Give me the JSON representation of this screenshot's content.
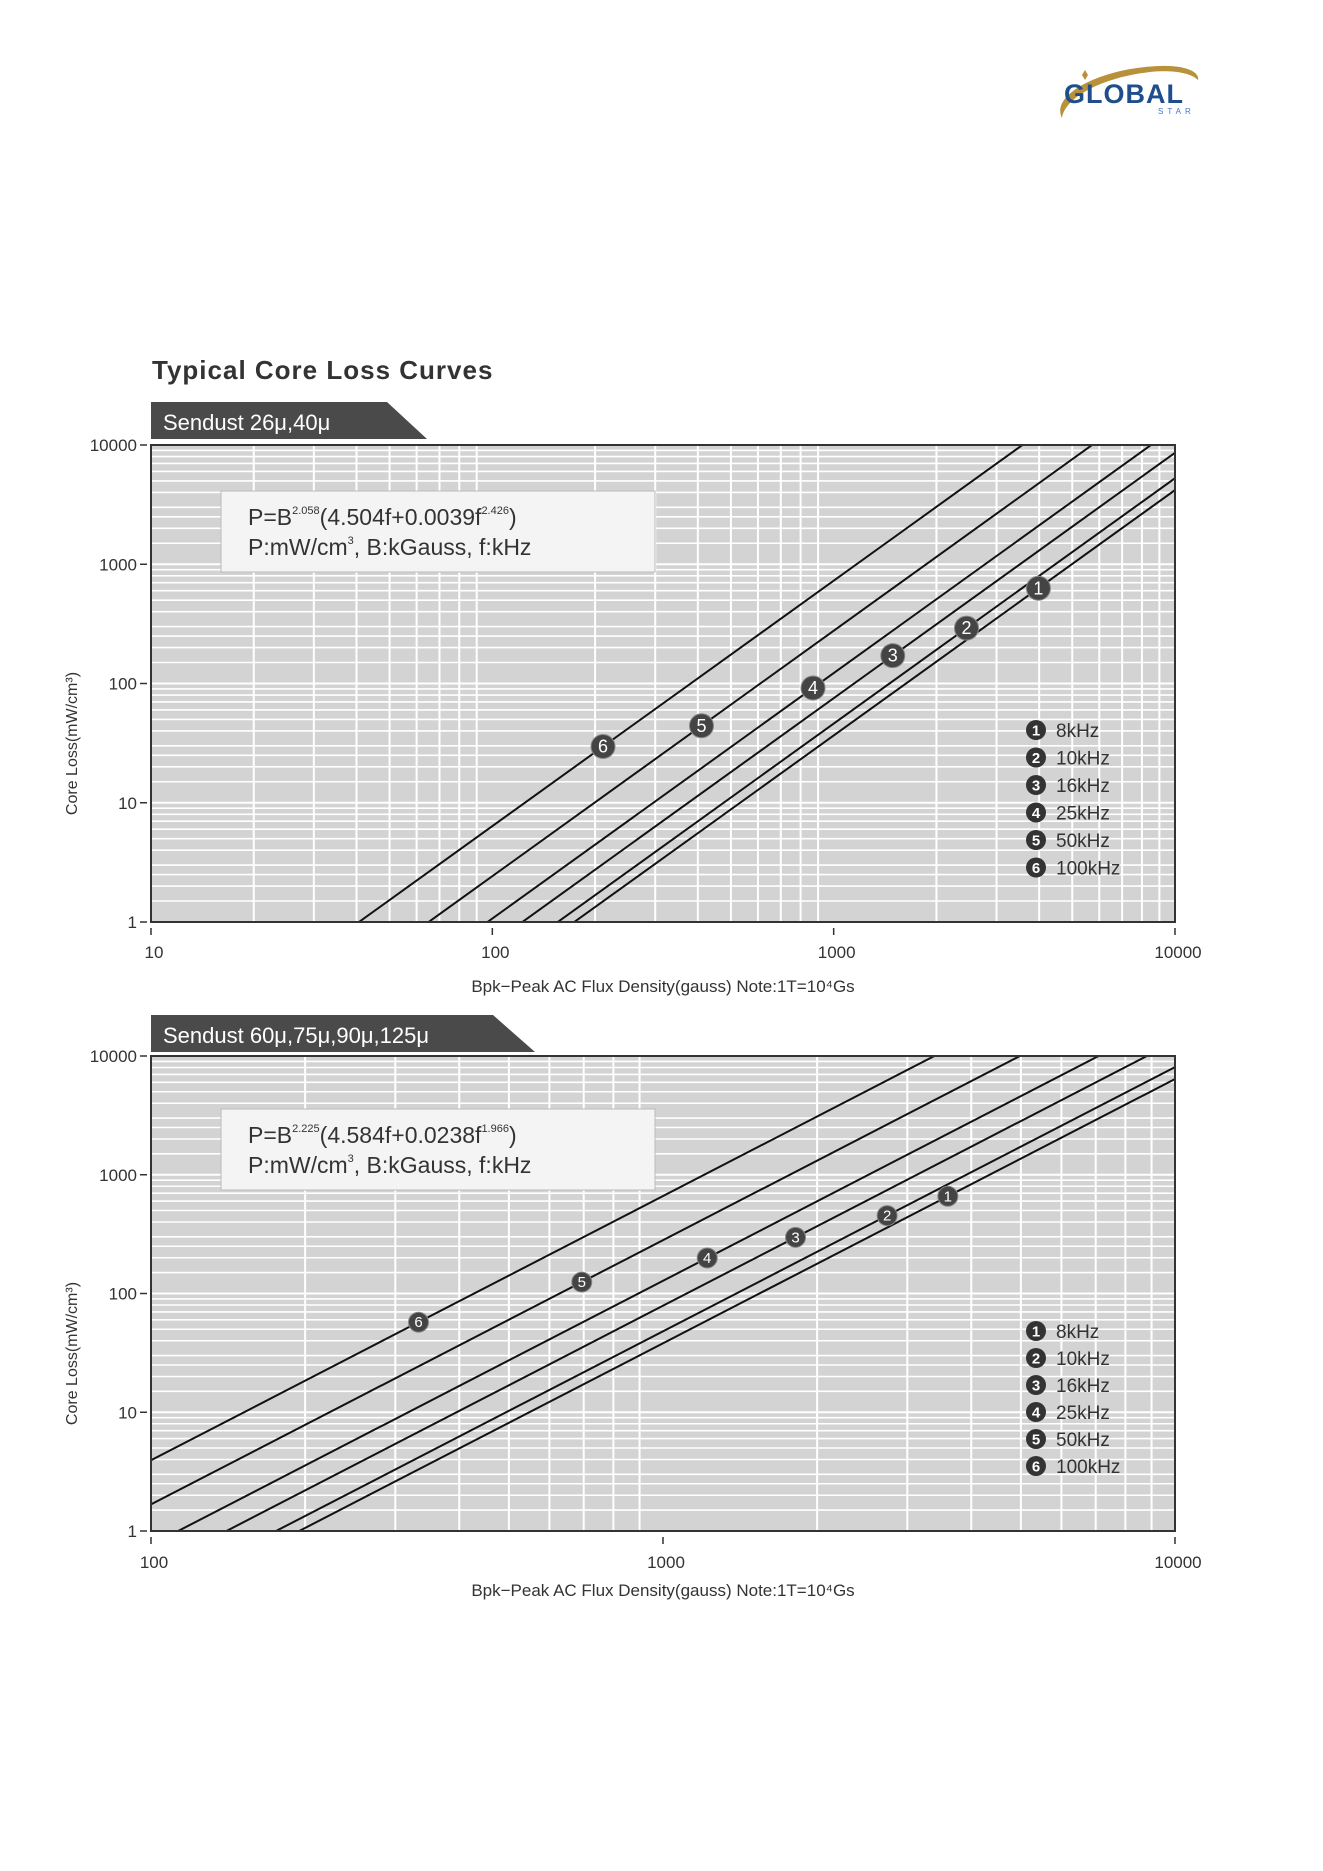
{
  "logo": {
    "name": "GLOBAL",
    "sub": "STAR",
    "colors": {
      "text": "#1f4e8c",
      "swoosh": "#b8923a"
    }
  },
  "page_title": "Typical Core Loss Curves",
  "chart_data": [
    {
      "type": "line",
      "title": "Sendust 26μ,40μ",
      "formula": {
        "line1": [
          "P=B",
          "2.058",
          "(4.504f+0.0039f",
          "2.426",
          ")"
        ],
        "line2": [
          "P:mW/cm",
          "3",
          ",  B:kGauss,  f:kHz"
        ]
      },
      "model": {
        "b_exp": 2.058,
        "c1": 4.504,
        "c2": 0.0039,
        "f_exp": 2.426,
        "x_unit_per_kGauss": 1000
      },
      "xlabel": "Bpk−Peak AC Flux Density(gauss) Note:1T=10⁴Gs",
      "ylabel": "Core Loss(mW/cm³)",
      "xscale": "log",
      "yscale": "log",
      "xlim": [
        10,
        10000
      ],
      "ylim": [
        1,
        10000
      ],
      "xticks": [
        {
          "v": 10,
          "label": "10"
        },
        {
          "v": 100,
          "label": "100"
        },
        {
          "v": 1000,
          "label": "1000"
        },
        {
          "v": 10000,
          "label": "10000"
        }
      ],
      "yticks": [
        {
          "v": 1,
          "label": "1"
        },
        {
          "v": 10,
          "label": "10"
        },
        {
          "v": 100,
          "label": "100"
        },
        {
          "v": 1000,
          "label": "1000"
        },
        {
          "v": 10000,
          "label": "10000"
        }
      ],
      "grid": true,
      "legend_position": "right",
      "series": [
        {
          "id": "1",
          "name": "8kHz",
          "f": 8,
          "marker_x": 3980
        },
        {
          "id": "2",
          "name": "10kHz",
          "f": 10,
          "marker_x": 2450
        },
        {
          "id": "3",
          "name": "16kHz",
          "f": 16,
          "marker_x": 1490
        },
        {
          "id": "4",
          "name": "25kHz",
          "f": 25,
          "marker_x": 870
        },
        {
          "id": "5",
          "name": "50kHz",
          "f": 50,
          "marker_x": 410
        },
        {
          "id": "6",
          "name": "100kHz",
          "f": 100,
          "marker_x": 211
        }
      ]
    },
    {
      "type": "line",
      "title": "Sendust 60μ,75μ,90μ,125μ",
      "formula": {
        "line1": [
          "P=B",
          "2.225",
          "(4.584f+0.0238f",
          "1.966",
          ")"
        ],
        "line2": [
          "P:mW/cm",
          "3",
          ",  B:kGauss,  f:kHz"
        ]
      },
      "model": {
        "b_exp": 2.225,
        "c1": 4.584,
        "c2": 0.0238,
        "f_exp": 1.966,
        "x_unit_per_kGauss": 1000
      },
      "xlabel": "Bpk−Peak AC Flux Density(gauss) Note:1T=10⁴Gs",
      "ylabel": "Core Loss(mW/cm³)",
      "xscale": "log",
      "yscale": "log",
      "xlim": [
        100,
        10000
      ],
      "ylim": [
        1,
        10000
      ],
      "xticks": [
        {
          "v": 100,
          "label": "100"
        },
        {
          "v": 1000,
          "label": "1000"
        },
        {
          "v": 10000,
          "label": "10000"
        }
      ],
      "yticks": [
        {
          "v": 1,
          "label": "1"
        },
        {
          "v": 10,
          "label": "10"
        },
        {
          "v": 100,
          "label": "100"
        },
        {
          "v": 1000,
          "label": "1000"
        },
        {
          "v": 10000,
          "label": "10000"
        }
      ],
      "grid": true,
      "legend_position": "right",
      "series": [
        {
          "id": "1",
          "name": "8kHz",
          "f": 8,
          "marker_x": 3600
        },
        {
          "id": "2",
          "name": "10kHz",
          "f": 10,
          "marker_x": 2740
        },
        {
          "id": "3",
          "name": "16kHz",
          "f": 16,
          "marker_x": 1815
        },
        {
          "id": "4",
          "name": "25kHz",
          "f": 25,
          "marker_x": 1220
        },
        {
          "id": "5",
          "name": "50kHz",
          "f": 50,
          "marker_x": 694
        },
        {
          "id": "6",
          "name": "100kHz",
          "f": 100,
          "marker_x": 333
        }
      ]
    }
  ]
}
